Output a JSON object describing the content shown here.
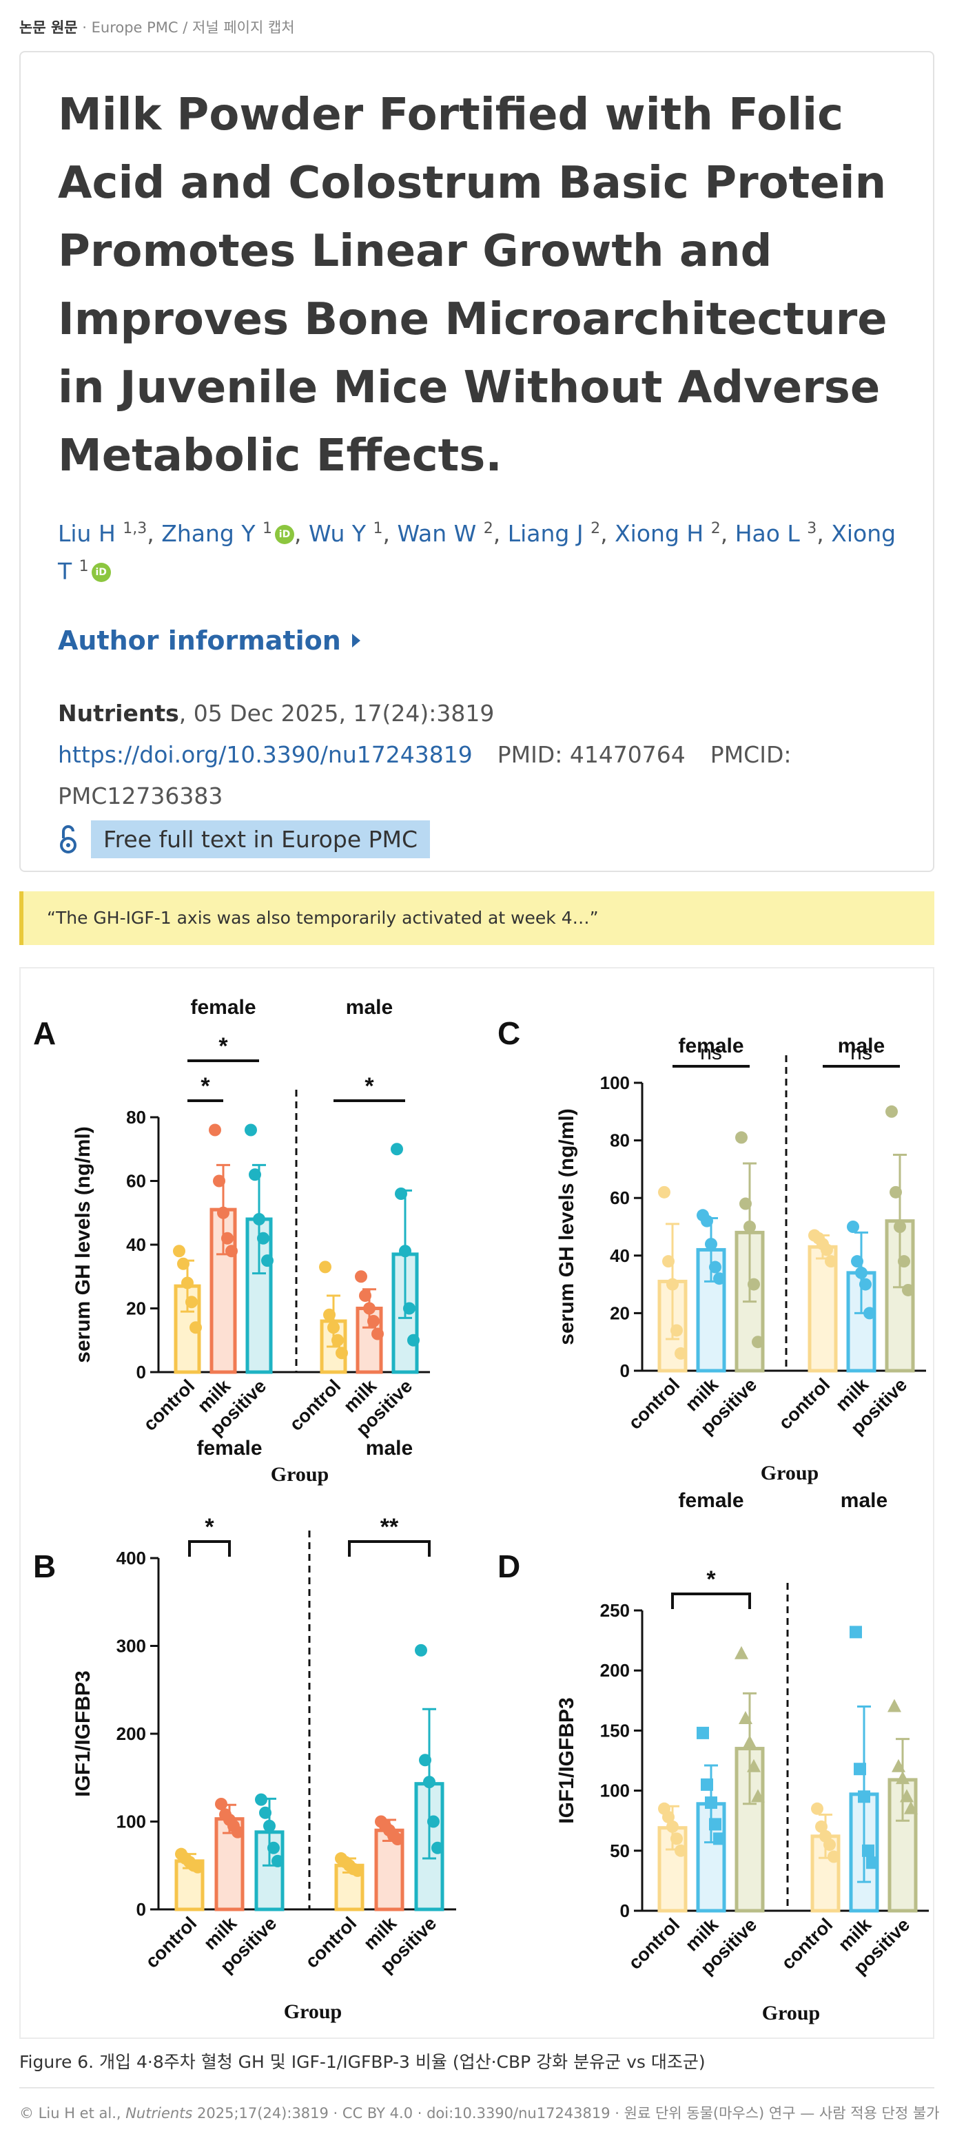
{
  "header": {
    "label_bold": "논문 원문",
    "label_rest": " · Europe PMC / 저널 페이지 캡처"
  },
  "paper": {
    "title": "Milk Powder Fortified with Folic Acid and Colostrum Basic Protein Promotes Linear Growth and Improves Bone Microarchitecture in Juvenile Mice Without Adverse Metabolic Effects.",
    "authors": [
      {
        "name": "Liu H",
        "aff": "1,3",
        "orcid": false
      },
      {
        "name": "Zhang Y",
        "aff": "1",
        "orcid": true
      },
      {
        "name": "Wu Y",
        "aff": "1",
        "orcid": false
      },
      {
        "name": "Wan W",
        "aff": "2",
        "orcid": false
      },
      {
        "name": "Liang J",
        "aff": "2",
        "orcid": false
      },
      {
        "name": "Xiong H",
        "aff": "2",
        "orcid": false
      },
      {
        "name": "Hao L",
        "aff": "3",
        "orcid": false
      },
      {
        "name": "Xiong T",
        "aff": "1",
        "orcid": true
      }
    ],
    "orcid_glyph": "iD",
    "author_info_label": "Author information",
    "journal": "Nutrients",
    "citation": ", 05 Dec 2025, 17(24):3819",
    "doi_url": "https://doi.org/10.3390/nu17243819",
    "pmid": "PMID: 41470764",
    "pmcid": "PMCID: PMC12736383",
    "fulltext_label": "Free full text in Europe PMC"
  },
  "quote": "“The GH-IGF-1 axis was also temporarily activated at week 4…”",
  "figure": {
    "caption": "Figure 6. 개입 4·8주차 혈청 GH 및 IGF-1/IGFBP-3 비율 (업산·CBP 강화 분유군 vs 대조군)"
  },
  "footer": {
    "prefix": "© Liu H et al., ",
    "journal": "Nutrients",
    "rest": " 2025;17(24):3819 · CC BY 4.0 · doi:10.3390/nu17243819 · 원료 단위 동물(마우스) 연구 — 사람 적용 단정 불가"
  },
  "colors": {
    "link": "#2a66a8",
    "quote_bg": "#fbf3ad",
    "quote_bar": "#e9c93b",
    "fulltext_bg": "#b9d9f2",
    "orcid": "#8cc63f"
  },
  "chart_data": [
    {
      "panel": "A",
      "type": "bar",
      "ylabel": "serum GH levels (ng/ml)",
      "xlabel": "Group",
      "ylim": [
        0,
        80
      ],
      "yticks": [
        0,
        20,
        40,
        60,
        80
      ],
      "groups": [
        "female",
        "male"
      ],
      "categories": [
        "control",
        "milk",
        "positive"
      ],
      "series": [
        {
          "group": "female",
          "values": [
            27,
            51,
            48
          ],
          "sd": [
            8,
            14,
            17
          ]
        },
        {
          "group": "male",
          "values": [
            16,
            20,
            37
          ],
          "sd": [
            8,
            6,
            20
          ]
        }
      ],
      "points": {
        "female": [
          [
            38,
            34,
            28,
            22,
            14
          ],
          [
            76,
            60,
            50,
            42,
            38
          ],
          [
            76,
            62,
            48,
            42,
            35
          ]
        ],
        "male": [
          [
            33,
            18,
            14,
            10,
            6
          ],
          [
            30,
            24,
            20,
            16,
            12
          ],
          [
            70,
            56,
            38,
            20,
            10
          ]
        ]
      },
      "significance": [
        {
          "group": "female",
          "from": 0,
          "to": 1,
          "label": "*"
        },
        {
          "group": "female",
          "from": 0,
          "to": 2,
          "label": "*"
        },
        {
          "group": "male",
          "from": 0,
          "to": 2,
          "label": "*"
        }
      ]
    },
    {
      "panel": "C",
      "type": "bar",
      "ylabel": "serum GH levels (ng/ml)",
      "xlabel": "Group",
      "ylim": [
        0,
        100
      ],
      "yticks": [
        0,
        20,
        40,
        60,
        80,
        100
      ],
      "groups": [
        "female",
        "male"
      ],
      "categories": [
        "control",
        "milk",
        "positive"
      ],
      "series": [
        {
          "group": "female",
          "values": [
            31,
            42,
            48
          ],
          "sd": [
            20,
            11,
            24
          ]
        },
        {
          "group": "male",
          "values": [
            43,
            34,
            52
          ],
          "sd": [
            4,
            14,
            23
          ]
        }
      ],
      "points": {
        "female": [
          [
            62,
            38,
            30,
            14,
            6
          ],
          [
            54,
            52,
            44,
            36,
            32
          ],
          [
            81,
            58,
            50,
            30,
            10
          ]
        ],
        "male": [
          [
            47,
            46,
            44,
            42,
            38
          ],
          [
            50,
            38,
            34,
            30,
            20
          ],
          [
            90,
            62,
            50,
            38,
            28
          ]
        ]
      },
      "significance": [
        {
          "group": "female",
          "from": 0,
          "to": 2,
          "label": "ns"
        },
        {
          "group": "male",
          "from": 0,
          "to": 2,
          "label": "ns"
        }
      ]
    },
    {
      "panel": "B",
      "type": "bar",
      "ylabel": "IGF1/IGFBP3",
      "xlabel": "Group",
      "ylim": [
        0,
        400
      ],
      "yticks": [
        0,
        100,
        200,
        300,
        400
      ],
      "groups": [
        "female",
        "male"
      ],
      "categories": [
        "control",
        "milk",
        "positive"
      ],
      "series": [
        {
          "group": "female",
          "values": [
            55,
            103,
            88
          ],
          "sd": [
            8,
            16,
            38
          ]
        },
        {
          "group": "male",
          "values": [
            50,
            90,
            143
          ],
          "sd": [
            8,
            12,
            85
          ]
        }
      ],
      "points": {
        "female": [
          [
            63,
            58,
            54,
            50,
            48
          ],
          [
            120,
            108,
            102,
            95,
            88
          ],
          [
            125,
            110,
            95,
            70,
            55
          ]
        ],
        "male": [
          [
            58,
            54,
            50,
            46,
            44
          ],
          [
            100,
            95,
            90,
            84,
            80
          ],
          [
            295,
            170,
            145,
            100,
            70
          ]
        ]
      },
      "significance": [
        {
          "group": "female",
          "from": 0,
          "to": 1,
          "label": "*"
        },
        {
          "group": "male",
          "from": 0,
          "to": 2,
          "label": "**"
        }
      ]
    },
    {
      "panel": "D",
      "type": "bar",
      "ylabel": "IGF1/IGFBP3",
      "xlabel": "Group",
      "ylim": [
        0,
        250
      ],
      "yticks": [
        0,
        50,
        100,
        150,
        200,
        250
      ],
      "groups": [
        "female",
        "male"
      ],
      "categories": [
        "control",
        "milk",
        "positive"
      ],
      "series": [
        {
          "group": "female",
          "values": [
            69,
            89,
            135
          ],
          "sd": [
            18,
            32,
            46
          ]
        },
        {
          "group": "male",
          "values": [
            62,
            97,
            109
          ],
          "sd": [
            18,
            73,
            34
          ]
        }
      ],
      "points": {
        "female": [
          [
            85,
            78,
            70,
            60,
            50
          ],
          [
            148,
            105,
            90,
            72,
            60
          ],
          [
            214,
            160,
            140,
            120,
            95
          ]
        ],
        "male": [
          [
            85,
            70,
            62,
            55,
            45
          ],
          [
            232,
            118,
            95,
            50,
            40
          ],
          [
            170,
            120,
            110,
            95,
            85
          ]
        ]
      },
      "significance": [
        {
          "group": "female",
          "from": 0,
          "to": 2,
          "label": "*"
        }
      ]
    }
  ]
}
